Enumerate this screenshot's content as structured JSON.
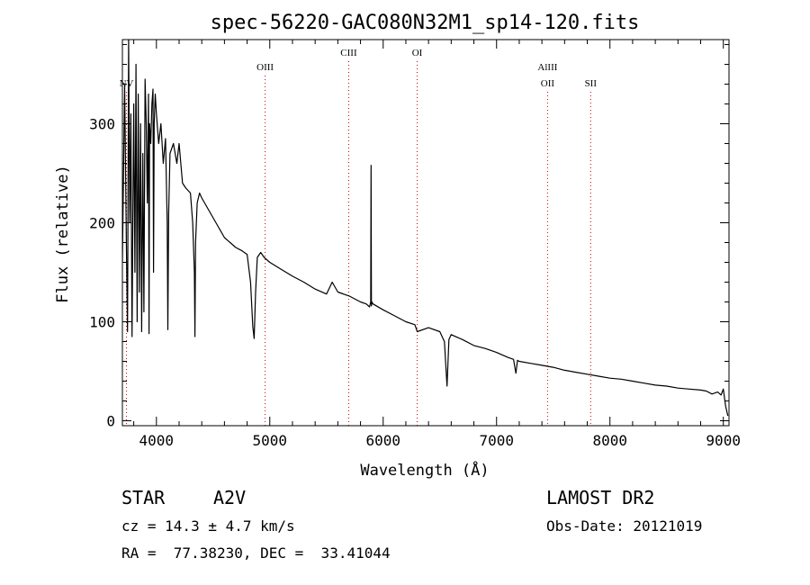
{
  "chart_data": {
    "type": "line",
    "title": "spec-56220-GAC080N32M1_sp14-120.fits",
    "xlabel": "Wavelength (Å)",
    "ylabel": "Flux (relative)",
    "xlim": [
      3700,
      9050
    ],
    "ylim": [
      -5,
      385
    ],
    "xticks": [
      4000,
      5000,
      6000,
      7000,
      8000,
      9000
    ],
    "yticks": [
      0,
      100,
      200,
      300
    ],
    "grid": false,
    "series": [
      {
        "x": [
          3700,
          3720,
          3735,
          3745,
          3755,
          3765,
          3775,
          3785,
          3795,
          3800,
          3810,
          3820,
          3830,
          3840,
          3850,
          3860,
          3870,
          3880,
          3890,
          3900,
          3910,
          3920,
          3930,
          3935,
          3940,
          3950,
          3960,
          3970,
          3975,
          3980,
          3990,
          4000,
          4020,
          4040,
          4060,
          4080,
          4095,
          4101,
          4108,
          4120,
          4150,
          4180,
          4200,
          4230,
          4260,
          4300,
          4320,
          4335,
          4340,
          4345,
          4360,
          4380,
          4400,
          4450,
          4500,
          4550,
          4600,
          4650,
          4700,
          4750,
          4800,
          4830,
          4850,
          4862,
          4875,
          4890,
          4920,
          4950,
          5000,
          5100,
          5200,
          5300,
          5400,
          5500,
          5550,
          5600,
          5700,
          5800,
          5850,
          5880,
          5890,
          5893,
          5896,
          5900,
          5910,
          6000,
          6100,
          6200,
          6280,
          6300,
          6400,
          6500,
          6540,
          6563,
          6580,
          6600,
          6700,
          6800,
          6900,
          7000,
          7100,
          7150,
          7170,
          7185,
          7200,
          7300,
          7400,
          7500,
          7600,
          7700,
          7800,
          7900,
          8000,
          8100,
          8200,
          8300,
          8400,
          8500,
          8600,
          8700,
          8800,
          8850,
          8900,
          8950,
          8980,
          9000,
          9020,
          9040
        ],
        "y": [
          160,
          340,
          180,
          90,
          385,
          200,
          310,
          85,
          250,
          320,
          150,
          360,
          100,
          330,
          130,
          300,
          90,
          270,
          110,
          345,
          300,
          220,
          330,
          88,
          300,
          280,
          320,
          335,
          150,
          300,
          330,
          310,
          280,
          300,
          260,
          285,
          200,
          92,
          210,
          270,
          280,
          260,
          280,
          240,
          235,
          230,
          200,
          150,
          85,
          180,
          220,
          230,
          225,
          215,
          205,
          195,
          185,
          180,
          175,
          172,
          168,
          140,
          95,
          83,
          130,
          165,
          170,
          165,
          160,
          153,
          146,
          140,
          133,
          128,
          140,
          130,
          126,
          120,
          118,
          115,
          120,
          258,
          116,
          120,
          118,
          112,
          106,
          100,
          97,
          90,
          94,
          90,
          80,
          35,
          82,
          87,
          82,
          76,
          73,
          69,
          64,
          62,
          48,
          61,
          60,
          58,
          56,
          54,
          51,
          49,
          47,
          45,
          43,
          42,
          40,
          38,
          36,
          35,
          33,
          32,
          31,
          30,
          27,
          29,
          26,
          32,
          15,
          5
        ]
      }
    ],
    "line_ids": [
      {
        "label": "NV",
        "x": 3736
      },
      {
        "label": "OIII",
        "x": 4959
      },
      {
        "label": "CIII",
        "x": 5696
      },
      {
        "label": "OI",
        "x": 6300
      },
      {
        "label": "AlIII",
        "x": 7450
      },
      {
        "label": "OII",
        "x": 7450
      },
      {
        "label": "SII",
        "x": 7830
      }
    ],
    "colors": {
      "spectrum": "#000000",
      "line_markers": "#cc0000",
      "axes": "#000000"
    }
  },
  "info": {
    "object_class": "STAR",
    "subclass": "A2V",
    "cz": "cz = 14.3 ± 4.7 km/s",
    "coords": "RA =  77.38230, DEC =  33.41044",
    "survey": "LAMOST DR2",
    "obs_date": "Obs-Date: 20121019"
  }
}
